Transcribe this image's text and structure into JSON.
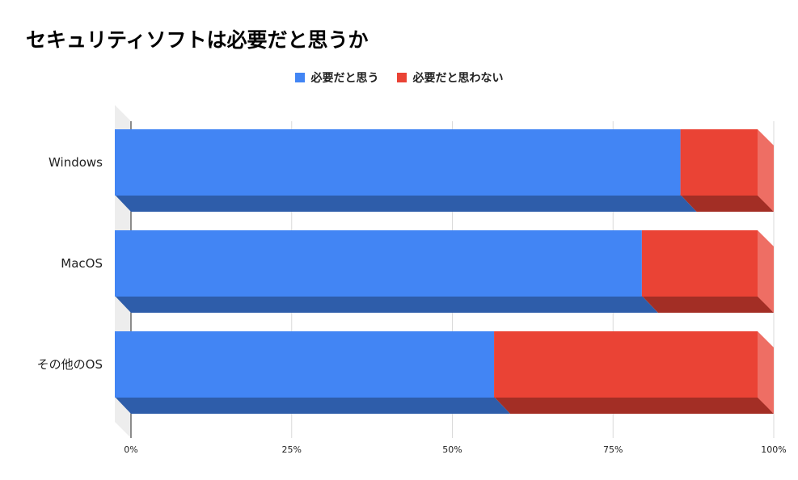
{
  "chart_data": {
    "type": "bar",
    "orientation": "horizontal",
    "stacked": "percent",
    "title": "セキュリティソフトは必要だと思うか",
    "categories": [
      "Windows",
      "MacOS",
      "その他のOS"
    ],
    "series": [
      {
        "name": "必要だと思う",
        "color": "#4285F4",
        "shade": "#2E5DAA",
        "values": [
          88,
          82,
          59
        ]
      },
      {
        "name": "必要だと思わない",
        "color": "#EA4335",
        "shade": "#A32E25",
        "values": [
          12,
          18,
          41
        ]
      }
    ],
    "xticks": [
      "0%",
      "25%",
      "50%",
      "75%",
      "100%"
    ],
    "xlim": [
      0,
      100
    ],
    "grid": true,
    "legend_position": "top"
  }
}
